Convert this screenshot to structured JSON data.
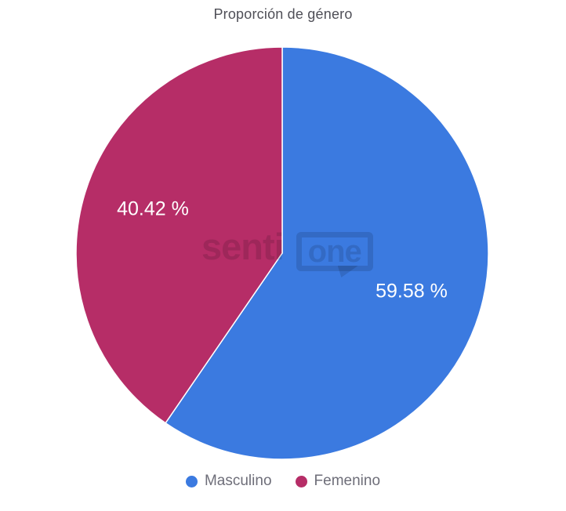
{
  "title": "Proporción de género",
  "watermark": {
    "text_left": "senti",
    "text_right": "one"
  },
  "chart_data": {
    "type": "pie",
    "title": "Proporción de género",
    "legend_position": "bottom",
    "start_angle_deg": 0,
    "direction": "clockwise",
    "label_color": "#ffffff",
    "slices": [
      {
        "label": "Masculino",
        "value": 59.58,
        "pct_label": "59.58 %",
        "color": "#3B7AE0"
      },
      {
        "label": "Femenino",
        "value": 40.42,
        "pct_label": "40.42 %",
        "color": "#B62D67"
      }
    ]
  }
}
